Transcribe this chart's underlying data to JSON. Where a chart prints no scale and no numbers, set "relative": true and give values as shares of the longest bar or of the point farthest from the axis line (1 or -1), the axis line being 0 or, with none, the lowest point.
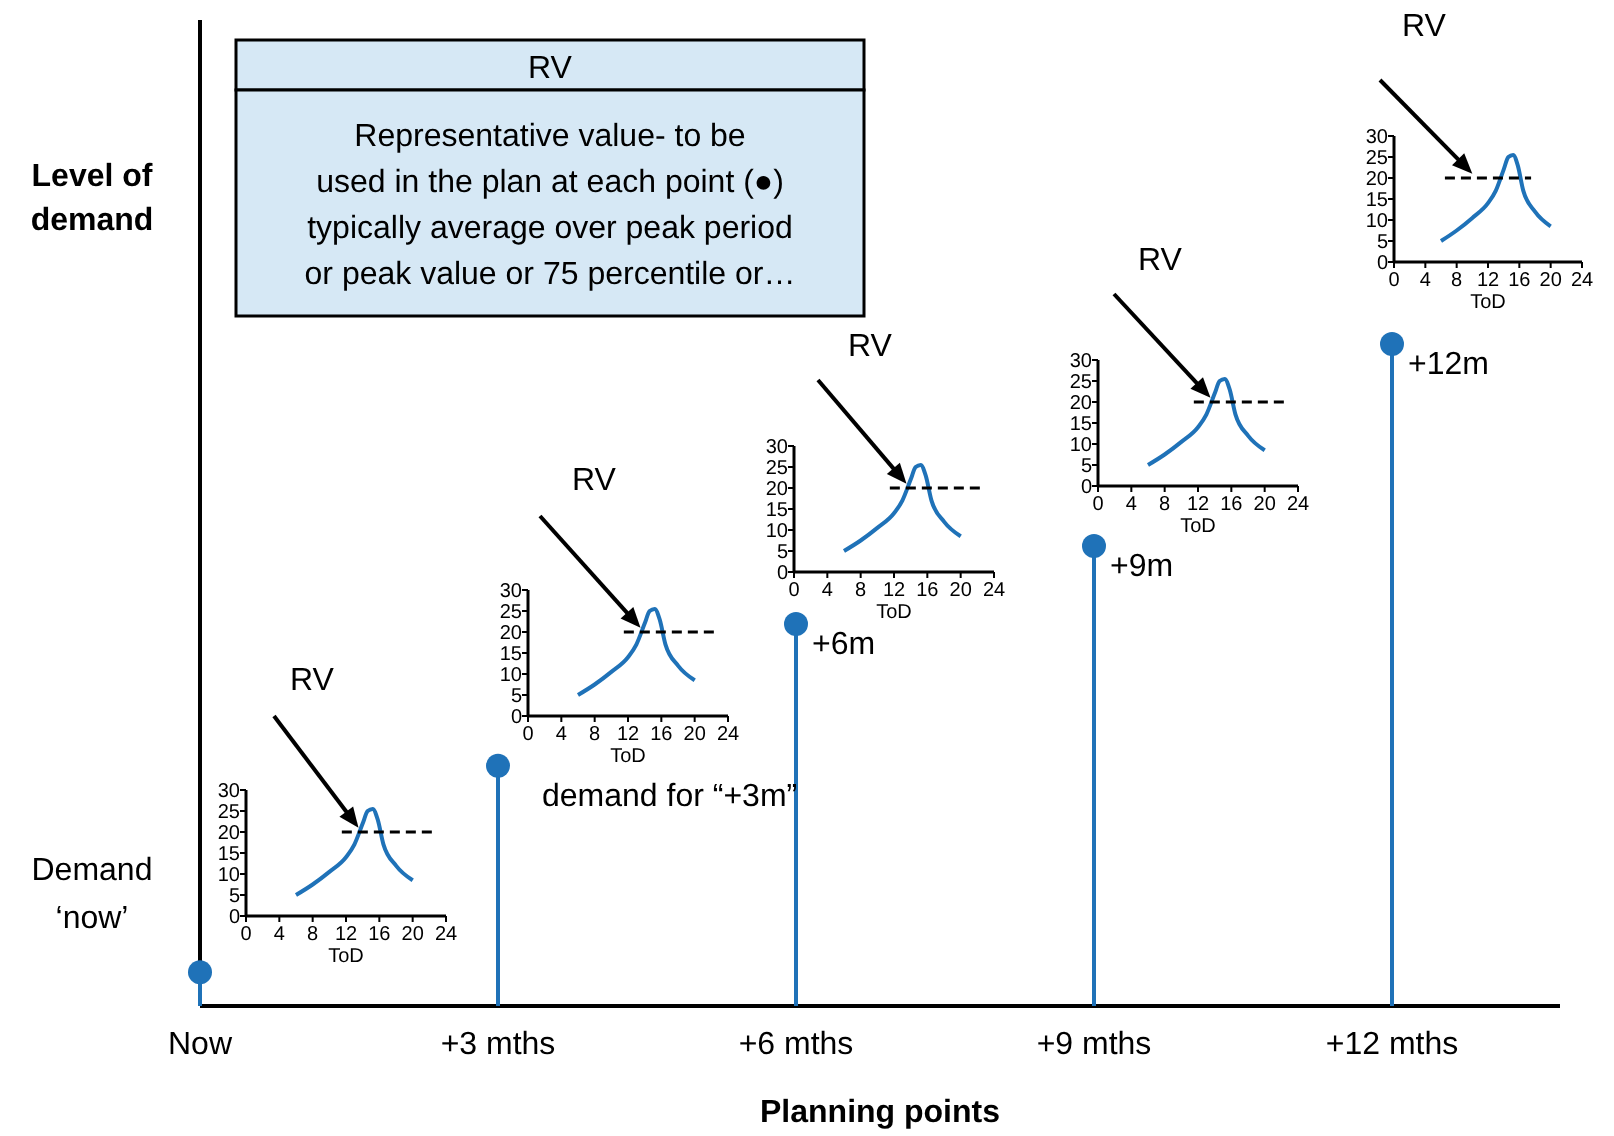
{
  "chart_data": [
    {
      "type": "lollipop",
      "categories": [
        "Now",
        "+3 mths",
        "+6 mths",
        "+9 mths",
        "+12 mths"
      ],
      "values": [
        0.051,
        0.363,
        0.577,
        0.695,
        1
      ],
      "relative": true,
      "color": "#1f72b8",
      "ylabel": "Level of demand",
      "xlabel": "Planning points",
      "marker": "circle",
      "annotations": [
        "RV",
        "Representative value- to be used in the plan at each point (●) typically average over peak period or peak value or 75 percentile or…",
        {
          "text": "Demand ‘now’",
          "x": "Now",
          "y": 0.051
        },
        {
          "text": "demand for “+3m”",
          "x": "+3 mths",
          "y": 0.363
        },
        {
          "text": "+6m",
          "x": "+6 mths",
          "y": 0.577
        },
        {
          "text": "+9m",
          "x": "+9 mths",
          "y": 0.695
        },
        {
          "text": "+12m",
          "x": "+12 mths",
          "y": 1
        }
      ]
    },
    {
      "type": "line",
      "xlim": [
        0,
        24
      ],
      "ylim": [
        0,
        30
      ],
      "xticks": [
        0,
        4,
        8,
        12,
        16,
        20,
        24
      ],
      "yticks": [
        0,
        5,
        10,
        15,
        20,
        25,
        30
      ],
      "xlabel": "ToD",
      "annotations": [
        "RV"
      ],
      "series": [
        {
          "color": "#1f72b8",
          "x": [
            6,
            8,
            10,
            12,
            13,
            14,
            14.6,
            15.2,
            15.8,
            16.5,
            18,
            20
          ],
          "values": [
            5,
            7.5,
            10.5,
            14,
            17,
            22,
            25,
            25.5,
            23,
            17,
            12,
            8.5
          ]
        },
        {
          "color": "#000000",
          "line_style": "dashed",
          "x": [
            11.5,
            23
          ],
          "values": [
            20,
            20
          ]
        }
      ]
    },
    {
      "type": "line",
      "xlim": [
        0,
        24
      ],
      "ylim": [
        0,
        30
      ],
      "xticks": [
        0,
        4,
        8,
        12,
        16,
        20,
        24
      ],
      "yticks": [
        0,
        5,
        10,
        15,
        20,
        25,
        30
      ],
      "xlabel": "ToD",
      "annotations": [
        "RV"
      ],
      "series": [
        {
          "color": "#1f72b8",
          "x": [
            6,
            8,
            10,
            12,
            13,
            14,
            14.6,
            15.2,
            15.8,
            16.5,
            18,
            20
          ],
          "values": [
            5,
            7.5,
            10.5,
            14,
            17,
            22,
            25,
            25.5,
            23,
            17,
            12,
            8.5
          ]
        },
        {
          "color": "#000000",
          "line_style": "dashed",
          "x": [
            11.5,
            23
          ],
          "values": [
            20,
            20
          ]
        }
      ]
    },
    {
      "type": "line",
      "xlim": [
        0,
        24
      ],
      "ylim": [
        0,
        30
      ],
      "xticks": [
        0,
        4,
        8,
        12,
        16,
        20,
        24
      ],
      "yticks": [
        0,
        5,
        10,
        15,
        20,
        25,
        30
      ],
      "xlabel": "ToD",
      "annotations": [
        "RV"
      ],
      "series": [
        {
          "color": "#1f72b8",
          "x": [
            6,
            8,
            10,
            12,
            13,
            14,
            14.6,
            15.2,
            15.8,
            16.5,
            18,
            20
          ],
          "values": [
            5,
            7.5,
            10.5,
            14,
            17,
            22,
            25,
            25.5,
            23,
            17,
            12,
            8.5
          ]
        },
        {
          "color": "#000000",
          "line_style": "dashed",
          "x": [
            11.5,
            23
          ],
          "values": [
            20,
            20
          ]
        }
      ]
    },
    {
      "type": "line",
      "xlim": [
        0,
        24
      ],
      "ylim": [
        0,
        30
      ],
      "xticks": [
        0,
        4,
        8,
        12,
        16,
        20,
        24
      ],
      "yticks": [
        0,
        5,
        10,
        15,
        20,
        25,
        30
      ],
      "xlabel": "ToD",
      "annotations": [
        "RV"
      ],
      "series": [
        {
          "color": "#1f72b8",
          "x": [
            6,
            8,
            10,
            12,
            13,
            14,
            14.6,
            15.2,
            15.8,
            16.5,
            18,
            20
          ],
          "values": [
            5,
            7.5,
            10.5,
            14,
            17,
            22,
            25,
            25.5,
            23,
            17,
            12,
            8.5
          ]
        },
        {
          "color": "#000000",
          "line_style": "dashed",
          "x": [
            11.5,
            23
          ],
          "values": [
            20,
            20
          ]
        }
      ]
    },
    {
      "type": "line",
      "xlim": [
        0,
        24
      ],
      "ylim": [
        0,
        30
      ],
      "xticks": [
        0,
        4,
        8,
        12,
        16,
        20,
        24
      ],
      "yticks": [
        0,
        5,
        10,
        15,
        20,
        25,
        30
      ],
      "xlabel": "ToD",
      "annotations": [
        "RV"
      ],
      "series": [
        {
          "color": "#1f72b8",
          "x": [
            6,
            8,
            10,
            12,
            13,
            14,
            14.6,
            15.2,
            15.8,
            16.5,
            18,
            20
          ],
          "values": [
            5,
            7.5,
            10.5,
            14,
            17,
            22,
            25,
            25.5,
            23,
            17,
            12,
            8.5
          ]
        },
        {
          "color": "#000000",
          "line_style": "dashed",
          "x": [
            6.5,
            17.5
          ],
          "values": [
            20,
            20
          ]
        }
      ]
    }
  ]
}
